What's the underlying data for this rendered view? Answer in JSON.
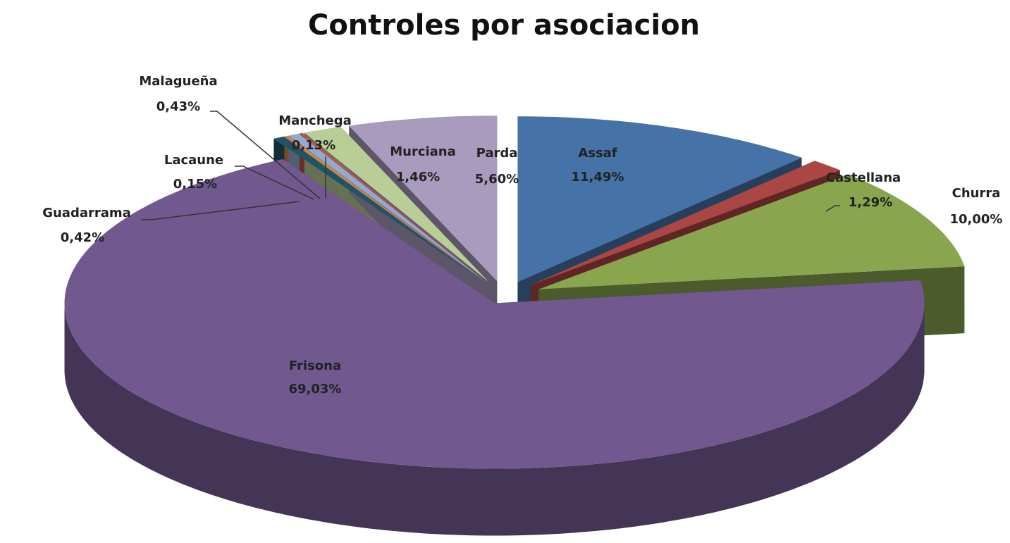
{
  "chart_data": {
    "type": "pie3d",
    "title": "Controles por asociacion",
    "categories": [
      "Assaf",
      "Castellana",
      "Churra",
      "Frisona",
      "Guadarrama",
      "Lacaune",
      "Malagueña",
      "Manchega",
      "Murciana",
      "Parda"
    ],
    "values": [
      11.49,
      1.29,
      10.0,
      69.03,
      0.42,
      0.15,
      0.43,
      0.13,
      1.46,
      5.6
    ],
    "value_labels": [
      "11,49%",
      "1,29%",
      "10,00%",
      "69,03%",
      "0,42%",
      "0,15%",
      "0,43%",
      "0,13%",
      "1,46%",
      "5,60%"
    ],
    "colors": [
      "#4572a7",
      "#aa4643",
      "#89a54e",
      "#71588f",
      "#1d5566",
      "#db843d",
      "#93a9cf",
      "#c0504d",
      "#b9cd96",
      "#a99bbd"
    ]
  }
}
